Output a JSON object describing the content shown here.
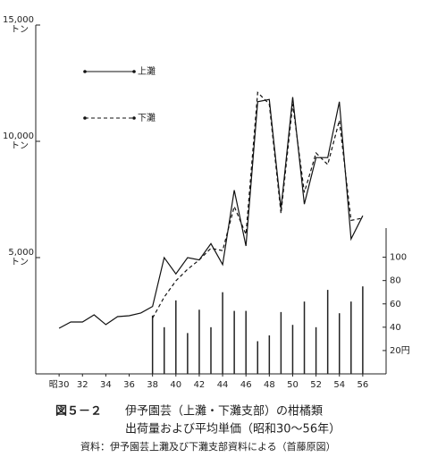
{
  "chart_data": {
    "type": "line",
    "figure_label": "図５－２",
    "title": "伊予園芸（上灘・下灘支部）の柑橘類",
    "subtitle": "出荷量および平均単価（昭和30～56年）",
    "source": "資料：伊予園芸上灘及び下灘支部資料による（首藤原図）",
    "y_tick_unit": "トン",
    "x": [
      30,
      31,
      32,
      33,
      34,
      35,
      36,
      37,
      38,
      39,
      40,
      41,
      42,
      43,
      44,
      45,
      46,
      47,
      48,
      49,
      50,
      51,
      52,
      53,
      54,
      55,
      56
    ],
    "xlim": [
      28,
      58
    ],
    "xticks": [
      {
        "value": 30,
        "label": "昭30"
      },
      32,
      34,
      36,
      38,
      40,
      42,
      44,
      46,
      48,
      50,
      52,
      54,
      56
    ],
    "ylim": [
      0,
      15000
    ],
    "yticks": [
      {
        "value": 5000,
        "label": "5,000"
      },
      {
        "value": 10000,
        "label": "10,000"
      },
      {
        "value": 15000,
        "label": "15,000"
      }
    ],
    "y2lim": [
      0,
      125
    ],
    "y2ticks": [
      {
        "value": 20,
        "label": "20円"
      },
      40,
      60,
      80,
      100
    ],
    "series": [
      {
        "name": "上灘",
        "color": "#111",
        "dash": false,
        "values": [
          1960,
          2230,
          2230,
          2540,
          2120,
          2460,
          2500,
          2620,
          2900,
          5000,
          4300,
          5000,
          4900,
          5600,
          4700,
          7900,
          5500,
          11700,
          11800,
          7100,
          11900,
          7300,
          9300,
          9300,
          11700,
          5800,
          6800
        ]
      },
      {
        "name": "下灘",
        "color": "#111",
        "dash": true,
        "values": [
          null,
          null,
          null,
          null,
          null,
          null,
          null,
          null,
          2400,
          3300,
          4000,
          4500,
          4900,
          5400,
          5300,
          7200,
          6000,
          12100,
          11600,
          6900,
          11600,
          7800,
          9500,
          9000,
          10900,
          6600,
          6700
        ]
      }
    ],
    "price_bars": {
      "axis": "y2",
      "color": "#222",
      "values": [
        null,
        null,
        null,
        null,
        null,
        null,
        null,
        null,
        50,
        40,
        63,
        35,
        55,
        40,
        70,
        54,
        54,
        28,
        33,
        53,
        42,
        62,
        40,
        72,
        52,
        62,
        75
      ]
    }
  }
}
